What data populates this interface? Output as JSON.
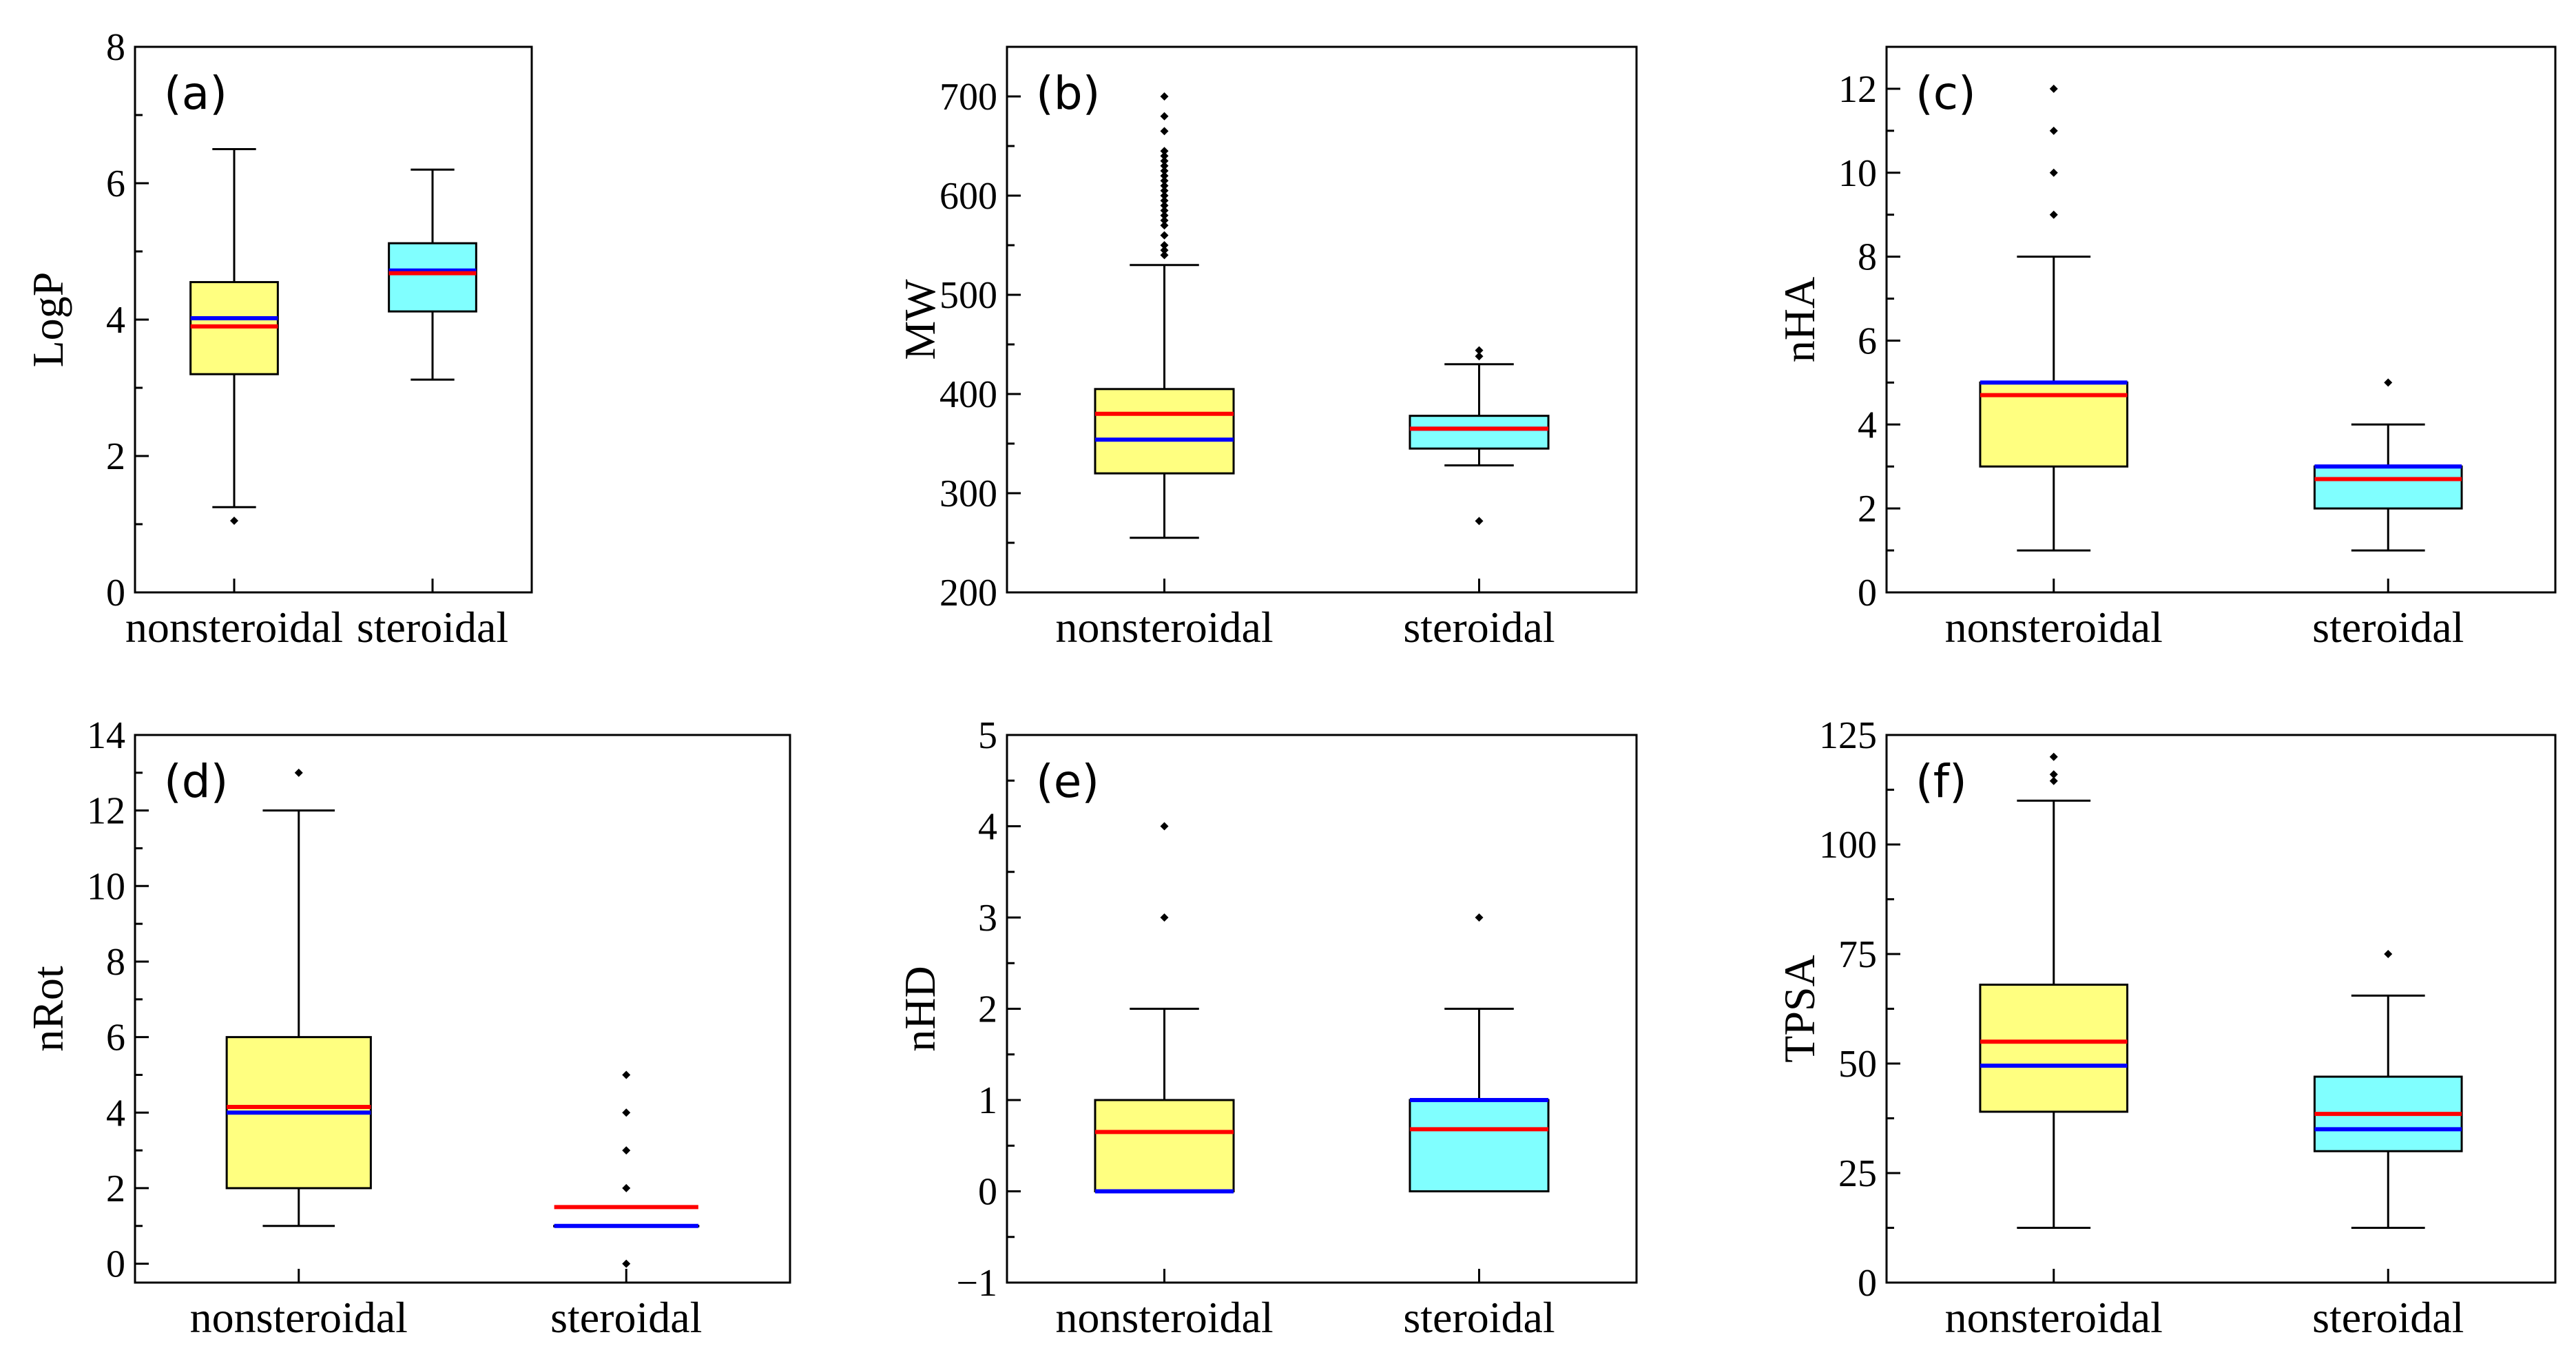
{
  "colors": {
    "nonsteroidal_fill": "#ffff80",
    "steroidal_fill": "#80ffff",
    "mean_line": "#ff0000",
    "median_line": "#0000ff",
    "frame": "#000000"
  },
  "chart_data": [
    {
      "type": "box",
      "panel_label": "(a)",
      "ylabel": "LogP",
      "ylim": [
        0,
        8
      ],
      "yticks": [
        0,
        2,
        4,
        6,
        8
      ],
      "yticks_minor": [
        1,
        3,
        5,
        7
      ],
      "categories": [
        "nonsteroidal",
        "steroidal"
      ],
      "series": [
        {
          "name": "nonsteroidal",
          "whisker_low": 1.25,
          "q1": 3.2,
          "median": 4.02,
          "mean": 3.9,
          "q3": 4.55,
          "whisker_high": 6.5,
          "outliers": [
            1.05
          ]
        },
        {
          "name": "steroidal",
          "whisker_low": 3.12,
          "q1": 4.12,
          "median": 4.72,
          "mean": 4.68,
          "q3": 5.12,
          "whisker_high": 6.2,
          "outliers": []
        }
      ]
    },
    {
      "type": "box",
      "panel_label": "(b)",
      "ylabel": "MW",
      "ylim": [
        200,
        750
      ],
      "yticks": [
        200,
        300,
        400,
        500,
        600,
        700
      ],
      "yticks_minor": [
        250,
        350,
        450,
        550,
        650
      ],
      "categories": [
        "nonsteroidal",
        "steroidal"
      ],
      "series": [
        {
          "name": "nonsteroidal",
          "whisker_low": 255,
          "q1": 320,
          "median": 354,
          "mean": 380,
          "q3": 405,
          "whisker_high": 530,
          "outliers": [
            540,
            545,
            550,
            560,
            570,
            575,
            580,
            585,
            590,
            595,
            600,
            605,
            610,
            615,
            620,
            625,
            630,
            635,
            640,
            645,
            665,
            680,
            700
          ]
        },
        {
          "name": "steroidal",
          "whisker_low": 328,
          "q1": 345,
          "median": 365,
          "mean": 365,
          "q3": 378,
          "whisker_high": 430,
          "outliers": [
            272,
            438,
            444
          ]
        }
      ]
    },
    {
      "type": "box",
      "panel_label": "(c)",
      "ylabel": "nHA",
      "ylim": [
        0,
        13
      ],
      "yticks": [
        0,
        2,
        4,
        6,
        8,
        10,
        12
      ],
      "yticks_minor": [
        1,
        3,
        5,
        7,
        9,
        11
      ],
      "categories": [
        "nonsteroidal",
        "steroidal"
      ],
      "series": [
        {
          "name": "nonsteroidal",
          "whisker_low": 1,
          "q1": 3,
          "median": 5,
          "mean": 4.7,
          "q3": 5,
          "whisker_high": 8,
          "outliers": [
            9,
            10,
            11,
            12
          ]
        },
        {
          "name": "steroidal",
          "whisker_low": 1,
          "q1": 2,
          "median": 3,
          "mean": 2.7,
          "q3": 3,
          "whisker_high": 4,
          "outliers": [
            5
          ]
        }
      ]
    },
    {
      "type": "box",
      "panel_label": "(d)",
      "ylabel": "nRot",
      "ylim": [
        -0.5,
        14
      ],
      "yticks": [
        0,
        2,
        4,
        6,
        8,
        10,
        12,
        14
      ],
      "yticks_minor": [
        1,
        3,
        5,
        7,
        9,
        11,
        13
      ],
      "categories": [
        "nonsteroidal",
        "steroidal"
      ],
      "series": [
        {
          "name": "nonsteroidal",
          "whisker_low": 1,
          "q1": 2,
          "median": 4,
          "mean": 4.15,
          "q3": 6,
          "whisker_high": 12,
          "outliers": [
            13
          ]
        },
        {
          "name": "steroidal",
          "whisker_low": 1,
          "q1": 1,
          "median": 1,
          "mean": 1.5,
          "q3": 1,
          "whisker_high": 1,
          "outliers": [
            0,
            2,
            3,
            4,
            5
          ]
        }
      ]
    },
    {
      "type": "box",
      "panel_label": "(e)",
      "ylabel": "nHD",
      "ylim": [
        -1,
        5
      ],
      "yticks": [
        -1,
        0,
        1,
        2,
        3,
        4,
        5
      ],
      "yticks_minor": [
        -0.5,
        0.5,
        1.5,
        2.5,
        3.5,
        4.5
      ],
      "categories": [
        "nonsteroidal",
        "steroidal"
      ],
      "series": [
        {
          "name": "nonsteroidal",
          "whisker_low": 0,
          "q1": 0,
          "median": 0,
          "mean": 0.65,
          "q3": 1,
          "whisker_high": 2,
          "outliers": [
            3,
            4
          ]
        },
        {
          "name": "steroidal",
          "whisker_low": 0,
          "q1": 0,
          "median": 1,
          "mean": 0.68,
          "q3": 1,
          "whisker_high": 2,
          "outliers": [
            3
          ]
        }
      ]
    },
    {
      "type": "box",
      "panel_label": "(f)",
      "ylabel": "TPSA",
      "ylim": [
        0,
        125
      ],
      "yticks": [
        0,
        25,
        50,
        75,
        100,
        125
      ],
      "yticks_minor": [
        12.5,
        37.5,
        62.5,
        87.5,
        112.5
      ],
      "categories": [
        "nonsteroidal",
        "steroidal"
      ],
      "series": [
        {
          "name": "nonsteroidal",
          "whisker_low": 12.5,
          "q1": 39,
          "median": 49.5,
          "mean": 55,
          "q3": 68,
          "whisker_high": 110,
          "outliers": [
            114.5,
            116,
            120
          ]
        },
        {
          "name": "steroidal",
          "whisker_low": 12.5,
          "q1": 30,
          "median": 35,
          "mean": 38.5,
          "q3": 47,
          "whisker_high": 65.5,
          "outliers": [
            75
          ]
        }
      ]
    }
  ]
}
